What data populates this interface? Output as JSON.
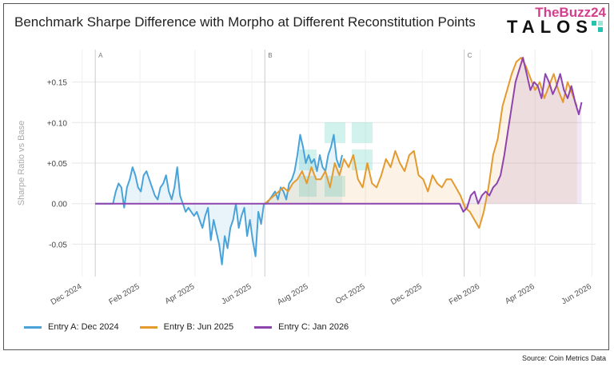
{
  "title": "Benchmark Sharpe Difference with Morpho at Different Reconstitution Points",
  "logo": {
    "overlay": "TheBuzz24",
    "brand": "TALOS"
  },
  "source": "Source: Coin Metrics Data",
  "chart_data": {
    "type": "line",
    "title": "Benchmark Sharpe Difference with Morpho at Different Reconstitution Points",
    "xlabel": "",
    "ylabel": "Sharpe Ratio vs Base",
    "ylim": [
      -0.09,
      0.19
    ],
    "grid": true,
    "legend_position": "bottom-left",
    "x_ticks": [
      "Dec 2024",
      "Feb 2025",
      "Apr 2025",
      "Jun 2025",
      "Aug 2025",
      "Oct 2025",
      "Dec 2025",
      "Feb 2026",
      "Apr 2026",
      "Jun 2026"
    ],
    "y_ticks": [
      "-0.05",
      "0.00",
      "+0.05",
      "+0.10",
      "+0.15"
    ],
    "y_tick_values": [
      -0.05,
      0.0,
      0.05,
      0.1,
      0.15
    ],
    "reconstitution_markers": [
      {
        "label": "A",
        "x": "2024-12-15"
      },
      {
        "label": "B",
        "x": "2025-06-15"
      },
      {
        "label": "C",
        "x": "2026-01-15"
      }
    ],
    "series": [
      {
        "name": "Entry A: Dec 2024",
        "color": "#4aa3d8",
        "x": [
          "2024-12-15",
          "2025-01-03",
          "2025-01-06",
          "2025-01-09",
          "2025-01-12",
          "2025-01-15",
          "2025-01-18",
          "2025-01-21",
          "2025-01-24",
          "2025-01-27",
          "2025-01-30",
          "2025-02-02",
          "2025-02-05",
          "2025-02-08",
          "2025-02-11",
          "2025-02-14",
          "2025-02-17",
          "2025-02-20",
          "2025-02-23",
          "2025-02-26",
          "2025-03-01",
          "2025-03-04",
          "2025-03-07",
          "2025-03-10",
          "2025-03-13",
          "2025-03-16",
          "2025-03-19",
          "2025-03-22",
          "2025-03-25",
          "2025-03-28",
          "2025-03-31",
          "2025-04-03",
          "2025-04-06",
          "2025-04-09",
          "2025-04-12",
          "2025-04-15",
          "2025-04-18",
          "2025-04-21",
          "2025-04-24",
          "2025-04-27",
          "2025-04-30",
          "2025-05-03",
          "2025-05-06",
          "2025-05-09",
          "2025-05-12",
          "2025-05-15",
          "2025-05-18",
          "2025-05-21",
          "2025-05-24",
          "2025-05-27",
          "2025-05-30",
          "2025-06-02",
          "2025-06-05",
          "2025-06-08",
          "2025-06-11",
          "2025-06-14",
          "2025-06-17",
          "2025-06-20",
          "2025-06-23",
          "2025-06-26",
          "2025-06-29",
          "2025-07-02",
          "2025-07-05",
          "2025-07-08",
          "2025-07-11",
          "2025-07-14",
          "2025-07-17",
          "2025-07-20",
          "2025-07-23",
          "2025-07-26",
          "2025-07-29",
          "2025-08-01",
          "2025-08-04",
          "2025-08-07",
          "2025-08-10",
          "2025-08-13",
          "2025-08-16",
          "2025-08-19",
          "2025-08-22",
          "2025-08-25",
          "2025-08-28",
          "2025-08-31",
          "2025-09-03",
          "2025-09-06"
        ],
        "values": [
          0.0,
          0.0,
          0.015,
          0.025,
          0.02,
          -0.005,
          0.02,
          0.03,
          0.045,
          0.035,
          0.02,
          0.015,
          0.035,
          0.04,
          0.03,
          0.02,
          0.01,
          0.005,
          0.02,
          0.025,
          0.035,
          0.015,
          0.005,
          0.02,
          0.045,
          0.01,
          0.0,
          -0.01,
          -0.005,
          -0.01,
          -0.015,
          -0.01,
          -0.02,
          -0.03,
          -0.015,
          -0.005,
          -0.045,
          -0.02,
          -0.035,
          -0.05,
          -0.075,
          -0.04,
          -0.055,
          -0.03,
          -0.02,
          0.0,
          -0.03,
          -0.015,
          -0.005,
          -0.04,
          -0.02,
          -0.045,
          -0.065,
          -0.01,
          -0.025,
          0.0,
          0.0,
          0.005,
          0.01,
          0.015,
          0.005,
          0.02,
          0.015,
          0.005,
          0.025,
          0.03,
          0.04,
          0.06,
          0.085,
          0.07,
          0.05,
          0.06,
          0.05,
          0.055,
          0.04,
          0.06,
          0.045,
          0.04,
          0.06,
          0.07,
          0.085,
          0.055,
          0.045,
          0.06
        ]
      },
      {
        "name": "Entry B: Jun 2025",
        "color": "#e39a2e",
        "x": [
          "2025-06-15",
          "2025-06-20",
          "2025-06-25",
          "2025-06-30",
          "2025-07-05",
          "2025-07-10",
          "2025-07-15",
          "2025-07-20",
          "2025-07-25",
          "2025-07-30",
          "2025-08-04",
          "2025-08-09",
          "2025-08-14",
          "2025-08-19",
          "2025-08-24",
          "2025-08-29",
          "2025-09-03",
          "2025-09-08",
          "2025-09-13",
          "2025-09-18",
          "2025-09-23",
          "2025-09-28",
          "2025-10-03",
          "2025-10-08",
          "2025-10-13",
          "2025-10-18",
          "2025-10-23",
          "2025-10-28",
          "2025-11-02",
          "2025-11-07",
          "2025-11-12",
          "2025-11-17",
          "2025-11-22",
          "2025-11-27",
          "2025-12-02",
          "2025-12-07",
          "2025-12-12",
          "2025-12-17",
          "2025-12-22",
          "2025-12-27",
          "2026-01-01",
          "2026-01-06",
          "2026-01-11",
          "2026-01-16",
          "2026-01-21",
          "2026-01-26",
          "2026-01-31",
          "2026-02-05",
          "2026-02-10",
          "2026-02-15",
          "2026-02-20",
          "2026-02-25",
          "2026-03-02",
          "2026-03-07",
          "2026-03-12",
          "2026-03-17",
          "2026-03-22",
          "2026-03-27",
          "2026-04-01",
          "2026-04-06",
          "2026-04-11",
          "2026-04-16",
          "2026-04-21",
          "2026-04-26",
          "2026-05-01",
          "2026-05-06",
          "2026-05-11",
          "2026-05-16"
        ],
        "values": [
          0.0,
          0.005,
          0.01,
          0.015,
          0.02,
          0.015,
          0.025,
          0.03,
          0.04,
          0.025,
          0.045,
          0.03,
          0.03,
          0.04,
          0.02,
          0.05,
          0.035,
          0.055,
          0.045,
          0.06,
          0.03,
          0.02,
          0.05,
          0.025,
          0.02,
          0.035,
          0.055,
          0.045,
          0.065,
          0.05,
          0.04,
          0.06,
          0.065,
          0.035,
          0.03,
          0.015,
          0.035,
          0.025,
          0.02,
          0.03,
          0.03,
          0.02,
          0.01,
          -0.005,
          -0.01,
          -0.02,
          -0.03,
          -0.01,
          0.02,
          0.06,
          0.08,
          0.12,
          0.14,
          0.16,
          0.175,
          0.18,
          0.17,
          0.155,
          0.14,
          0.15,
          0.13,
          0.145,
          0.16,
          0.14,
          0.125,
          0.15,
          0.135,
          0.12
        ]
      },
      {
        "name": "Entry C: Jan 2026",
        "color": "#8e44ad",
        "x": [
          "2024-12-15",
          "2026-01-10",
          "2026-01-14",
          "2026-01-18",
          "2026-01-22",
          "2026-01-26",
          "2026-01-30",
          "2026-02-03",
          "2026-02-07",
          "2026-02-11",
          "2026-02-15",
          "2026-02-19",
          "2026-02-23",
          "2026-02-27",
          "2026-03-03",
          "2026-03-07",
          "2026-03-11",
          "2026-03-15",
          "2026-03-19",
          "2026-03-23",
          "2026-03-27",
          "2026-03-31",
          "2026-04-04",
          "2026-04-08",
          "2026-04-12",
          "2026-04-16",
          "2026-04-20",
          "2026-04-24",
          "2026-04-28",
          "2026-05-02",
          "2026-05-06",
          "2026-05-10",
          "2026-05-14",
          "2026-05-18",
          "2026-05-21"
        ],
        "values": [
          0.0,
          0.0,
          -0.01,
          -0.005,
          0.01,
          0.015,
          0.0,
          0.01,
          0.015,
          0.01,
          0.02,
          0.025,
          0.035,
          0.06,
          0.09,
          0.12,
          0.15,
          0.165,
          0.18,
          0.16,
          0.14,
          0.15,
          0.145,
          0.13,
          0.16,
          0.15,
          0.135,
          0.145,
          0.16,
          0.14,
          0.13,
          0.145,
          0.125,
          0.11,
          0.125
        ]
      }
    ]
  }
}
